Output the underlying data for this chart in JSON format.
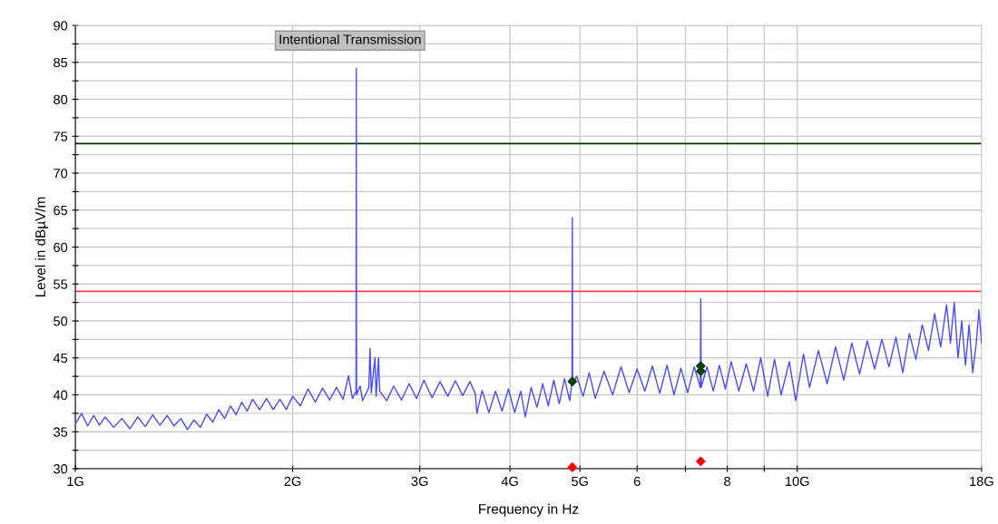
{
  "chart_data": {
    "type": "line",
    "xlabel": "Frequency in Hz",
    "ylabel": "Level in dBµV/m",
    "log": "x",
    "xlim": [
      1,
      18
    ],
    "xticks": [
      {
        "value": 1,
        "label": "1G"
      },
      {
        "value": 2,
        "label": "2G"
      },
      {
        "value": 3,
        "label": "3G"
      },
      {
        "value": 4,
        "label": "4G"
      },
      {
        "value": 5,
        "label": "5G"
      },
      6,
      {
        "value": 7,
        "label": null
      },
      8,
      {
        "value": 9,
        "label": null
      },
      {
        "value": 10,
        "label": "10G"
      },
      {
        "value": 18,
        "label": "18G"
      }
    ],
    "ylim": [
      30,
      90
    ],
    "yticks": [
      30,
      {
        "value": 32.5,
        "label": null
      },
      35,
      {
        "value": 37.5,
        "label": null
      },
      40,
      {
        "value": 42.5,
        "label": null
      },
      45,
      {
        "value": 47.5,
        "label": null
      },
      50,
      {
        "value": 52.5,
        "label": null
      },
      55,
      {
        "value": 57.5,
        "label": null
      },
      60,
      {
        "value": 62.5,
        "label": null
      },
      65,
      {
        "value": 67.5,
        "label": null
      },
      70,
      {
        "value": 72.5,
        "label": null
      },
      75,
      {
        "value": 77.5,
        "label": null
      },
      80,
      {
        "value": 82.5,
        "label": null
      },
      85,
      {
        "value": 87.5,
        "label": null
      },
      90
    ],
    "grid": true,
    "legend": false,
    "ref_lines": [
      {
        "axis": "y",
        "value": 74,
        "color": "#003300"
      },
      {
        "axis": "y",
        "value": 54,
        "color": "#ff4040"
      }
    ],
    "annotations": [
      {
        "text": "Intentional Transmission",
        "x": 2.45,
        "y": 84.2
      }
    ],
    "series": [
      {
        "color": "#4a4aff",
        "x": [
          1.0,
          1.02,
          1.04,
          1.06,
          1.08,
          1.1,
          1.13,
          1.16,
          1.19,
          1.22,
          1.25,
          1.28,
          1.31,
          1.34,
          1.37,
          1.4,
          1.43,
          1.46,
          1.49,
          1.52,
          1.55,
          1.58,
          1.61,
          1.64,
          1.67,
          1.7,
          1.73,
          1.76,
          1.8,
          1.84,
          1.88,
          1.92,
          1.96,
          2.0,
          2.05,
          2.1,
          2.15,
          2.2,
          2.25,
          2.3,
          2.35,
          2.39,
          2.42,
          2.448,
          2.45,
          2.452,
          2.48,
          2.5,
          2.55,
          2.56,
          2.57,
          2.6,
          2.61,
          2.63,
          2.64,
          2.7,
          2.76,
          2.83,
          2.9,
          2.97,
          3.04,
          3.12,
          3.2,
          3.28,
          3.36,
          3.44,
          3.52,
          3.58,
          3.6,
          3.66,
          3.74,
          3.82,
          3.9,
          3.98,
          4.06,
          4.14,
          4.2,
          4.28,
          4.36,
          4.44,
          4.52,
          4.6,
          4.68,
          4.76,
          4.84,
          4.875,
          4.88,
          4.885,
          4.95,
          5.05,
          5.15,
          5.25,
          5.4,
          5.55,
          5.7,
          5.85,
          6.0,
          6.15,
          6.3,
          6.45,
          6.6,
          6.75,
          6.9,
          7.05,
          7.2,
          7.34,
          7.35,
          7.36,
          7.5,
          7.65,
          7.8,
          7.95,
          8.1,
          8.3,
          8.5,
          8.7,
          8.9,
          9.1,
          9.3,
          9.5,
          9.75,
          9.95,
          10.2,
          10.4,
          10.7,
          11.0,
          11.3,
          11.6,
          11.9,
          12.2,
          12.5,
          12.8,
          13.1,
          13.4,
          13.7,
          14.0,
          14.3,
          14.6,
          14.9,
          15.2,
          15.5,
          15.8,
          16.1,
          16.3,
          16.5,
          16.7,
          16.9,
          17.1,
          17.3,
          17.5,
          17.7,
          17.85,
          18.0
        ],
        "values": [
          36.0,
          37.5,
          35.8,
          37.2,
          35.9,
          37.0,
          35.6,
          36.8,
          35.4,
          37.0,
          35.7,
          37.3,
          35.9,
          37.2,
          35.8,
          36.8,
          35.3,
          36.6,
          35.6,
          37.4,
          36.3,
          38.0,
          36.8,
          38.5,
          37.3,
          39.0,
          37.8,
          39.4,
          38.0,
          39.5,
          38.0,
          39.4,
          38.0,
          39.8,
          38.5,
          40.8,
          39.0,
          40.9,
          39.3,
          41.0,
          39.4,
          42.6,
          39.5,
          40.5,
          84.2,
          40.0,
          41.2,
          39.2,
          41.0,
          46.3,
          40.2,
          45.0,
          39.8,
          45.0,
          40.5,
          39.2,
          41.2,
          39.3,
          41.5,
          39.5,
          42.0,
          39.6,
          41.8,
          39.8,
          41.9,
          39.9,
          41.8,
          40.2,
          37.5,
          40.6,
          37.6,
          40.5,
          37.8,
          40.8,
          37.6,
          40.5,
          37.0,
          41.0,
          38.3,
          41.5,
          38.5,
          42.0,
          38.8,
          42.2,
          39.2,
          41.8,
          64.0,
          41.5,
          42.5,
          39.8,
          43.0,
          39.5,
          43.2,
          40.0,
          43.8,
          40.3,
          43.5,
          40.5,
          43.9,
          40.2,
          44.0,
          40.0,
          43.6,
          40.3,
          43.8,
          41.0,
          53.0,
          41.0,
          43.8,
          40.5,
          44.0,
          40.8,
          44.5,
          40.5,
          44.2,
          40.5,
          45.0,
          39.8,
          44.8,
          40.0,
          44.5,
          39.2,
          45.5,
          41.0,
          46.0,
          41.5,
          46.5,
          42.0,
          47.0,
          42.8,
          47.3,
          43.5,
          47.5,
          43.8,
          47.8,
          43.0,
          48.3,
          44.8,
          49.5,
          46.0,
          51.0,
          46.5,
          52.2,
          47.0,
          52.5,
          45.0,
          50.0,
          44.0,
          49.5,
          43.0,
          47.0,
          51.5,
          47.0
        ]
      },
      {
        "type": "scatter",
        "color": "#004000",
        "marker": "diamond",
        "x": [
          4.88,
          7.35,
          7.35
        ],
        "values": [
          41.8,
          43.9,
          43.2
        ]
      },
      {
        "type": "scatter",
        "color": "#ff0000",
        "marker": "diamond",
        "x": [
          4.88,
          7.35
        ],
        "values": [
          30.2,
          31.0
        ]
      }
    ]
  }
}
